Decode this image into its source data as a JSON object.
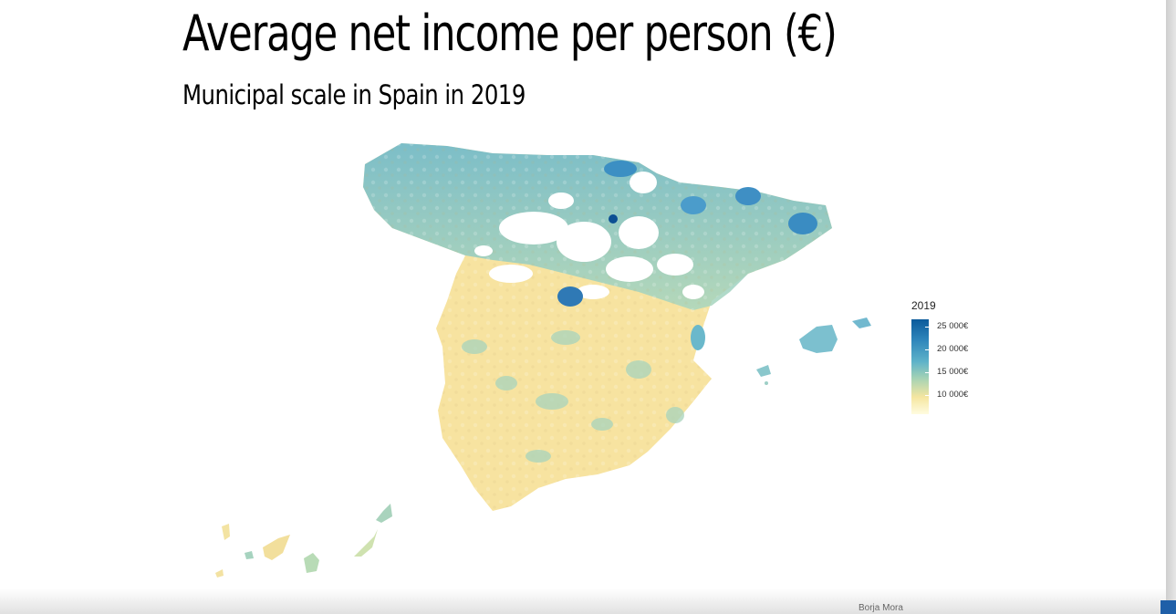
{
  "title": "Average net income per person (€)",
  "subtitle": "Municipal scale in Spain in 2019",
  "legend": {
    "title": "2019",
    "labels": [
      "25 000€",
      "20 000€",
      "15 000€",
      "10 000€"
    ],
    "scale_colors": [
      "#0a5a9b",
      "#2f86bb",
      "#5fb3c9",
      "#a4d2b5",
      "#f5e6a0",
      "#fffce0"
    ]
  },
  "caption": "Borja Mora",
  "map": {
    "region": "Spain",
    "palette": {
      "high": "#2f86bb",
      "mid": "#7fc3cf",
      "low": "#f7e4a0",
      "north_high": "#5ab0cf"
    }
  }
}
